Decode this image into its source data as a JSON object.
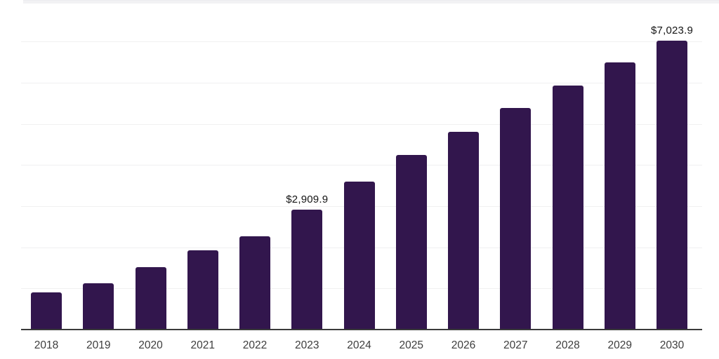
{
  "chart_data": {
    "type": "bar",
    "title": "",
    "xlabel": "",
    "ylabel": "",
    "categories": [
      "2018",
      "2019",
      "2020",
      "2021",
      "2022",
      "2023",
      "2024",
      "2025",
      "2026",
      "2027",
      "2028",
      "2029",
      "2030"
    ],
    "values": [
      900,
      1125,
      1520,
      1930,
      2270,
      2909.9,
      3600,
      4245,
      4810,
      5390,
      5935,
      6495,
      7023.9
    ],
    "value_labels": {
      "2023": "$2,909.9",
      "2030": "$7,023.9"
    },
    "ylim": [
      0,
      8000
    ],
    "gridline_step": 1000,
    "grid": "horizontal-only",
    "legend": "none",
    "bar_color": "#32164D",
    "colors": {
      "background": "#ffffff",
      "gridline": "#f0f0f1",
      "axis_line": "#3a3a3a",
      "tick_label": "#3d3d3d",
      "data_label": "#141414",
      "top_strip": "#f2f2f4"
    }
  }
}
